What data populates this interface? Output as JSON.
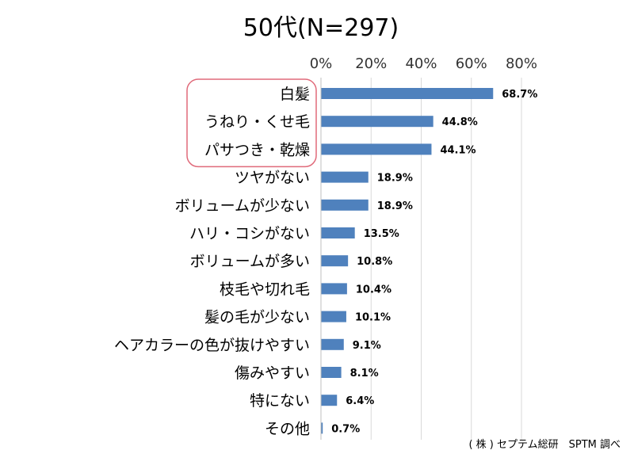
{
  "chart_data": {
    "type": "bar",
    "orientation": "horizontal",
    "title": "50代(N=297)",
    "categories": [
      "白髪",
      "うねり・くせ毛",
      "パサつき・乾燥",
      "ツヤがない",
      "ボリュームが少ない",
      "ハリ・コシがない",
      "ボリュームが多い",
      "枝毛や切れ毛",
      "髪の毛が少ない",
      "ヘアカラーの色が抜けやすい",
      "傷みやすい",
      "特にない",
      "その他"
    ],
    "values": [
      68.7,
      44.8,
      44.1,
      18.9,
      18.9,
      13.5,
      10.8,
      10.4,
      10.1,
      9.1,
      8.1,
      6.4,
      0.7
    ],
    "value_labels": [
      "68.7%",
      "44.8%",
      "44.1%",
      "18.9%",
      "18.9%",
      "13.5%",
      "10.8%",
      "10.4%",
      "10.1%",
      "9.1%",
      "8.1%",
      "6.4%",
      "0.7%"
    ],
    "xlim": [
      0,
      80
    ],
    "x_ticks": [
      0,
      20,
      40,
      60,
      80
    ],
    "x_tick_labels": [
      "0%",
      "20%",
      "40%",
      "60%",
      "80%"
    ],
    "x_axis_position": "top",
    "grid": true,
    "bar_color": "#4f81bd",
    "highlight_color": "#e06a7a",
    "highlighted_categories": [
      "白髪",
      "うねり・くせ毛",
      "パサつき・乾燥"
    ]
  },
  "footer": {
    "credit": "( 株 ) セプテム総研　SPTM 調べ"
  }
}
